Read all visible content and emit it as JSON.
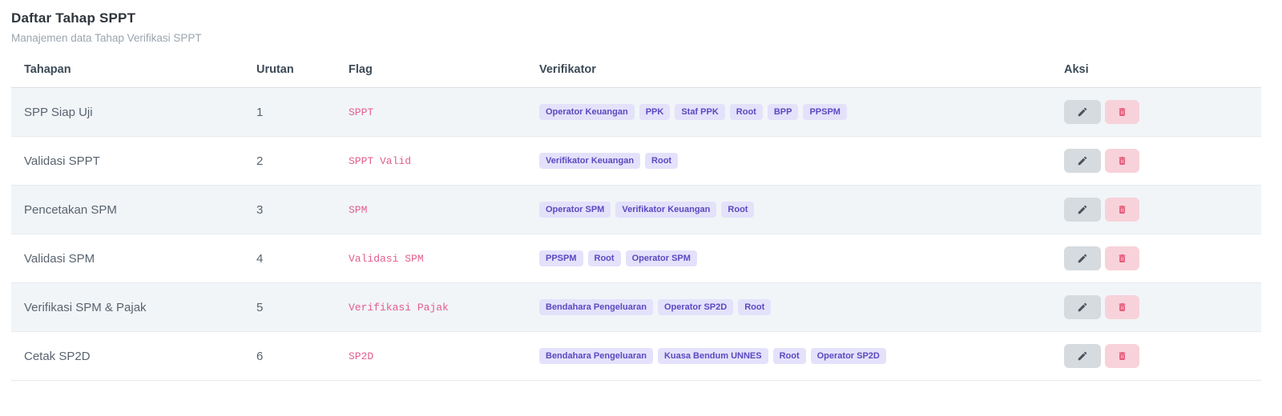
{
  "page": {
    "title": "Daftar Tahap SPPT",
    "subtitle": "Manajemen data Tahap Verifikasi SPPT"
  },
  "table": {
    "columns": [
      "Tahapan",
      "Urutan",
      "Flag",
      "Verifikator",
      "Aksi"
    ],
    "rows": [
      {
        "tahapan": "SPP Siap Uji",
        "urutan": "1",
        "flag": "SPPT",
        "verifikator": [
          "Operator Keuangan",
          "PPK",
          "Staf PPK",
          "Root",
          "BPP",
          "PPSPM"
        ]
      },
      {
        "tahapan": "Validasi SPPT",
        "urutan": "2",
        "flag": "SPPT Valid",
        "verifikator": [
          "Verifikator Keuangan",
          "Root"
        ]
      },
      {
        "tahapan": "Pencetakan SPM",
        "urutan": "3",
        "flag": "SPM",
        "verifikator": [
          "Operator SPM",
          "Verifikator Keuangan",
          "Root"
        ]
      },
      {
        "tahapan": "Validasi SPM",
        "urutan": "4",
        "flag": "Validasi SPM",
        "verifikator": [
          "PPSPM",
          "Root",
          "Operator SPM"
        ]
      },
      {
        "tahapan": "Verifikasi SPM & Pajak",
        "urutan": "5",
        "flag": "Verifikasi Pajak",
        "verifikator": [
          "Bendahara Pengeluaran",
          "Operator SP2D",
          "Root"
        ]
      },
      {
        "tahapan": "Cetak SP2D",
        "urutan": "6",
        "flag": "SP2D",
        "verifikator": [
          "Bendahara Pengeluaran",
          "Kuasa Bendum UNNES",
          "Root",
          "Operator SP2D"
        ]
      }
    ],
    "icons": {
      "edit": "pencil-icon",
      "delete": "trash-icon"
    }
  },
  "colors": {
    "flag_text": "#e25d8e",
    "badge_bg": "#e4e1fb",
    "badge_text": "#5a49c0",
    "stripe_bg": "#f1f5f8",
    "edit_btn_bg": "#d6dbdf",
    "edit_icon": "#49535f",
    "delete_btn_bg": "#f8d2da",
    "delete_icon": "#e14a6d"
  }
}
